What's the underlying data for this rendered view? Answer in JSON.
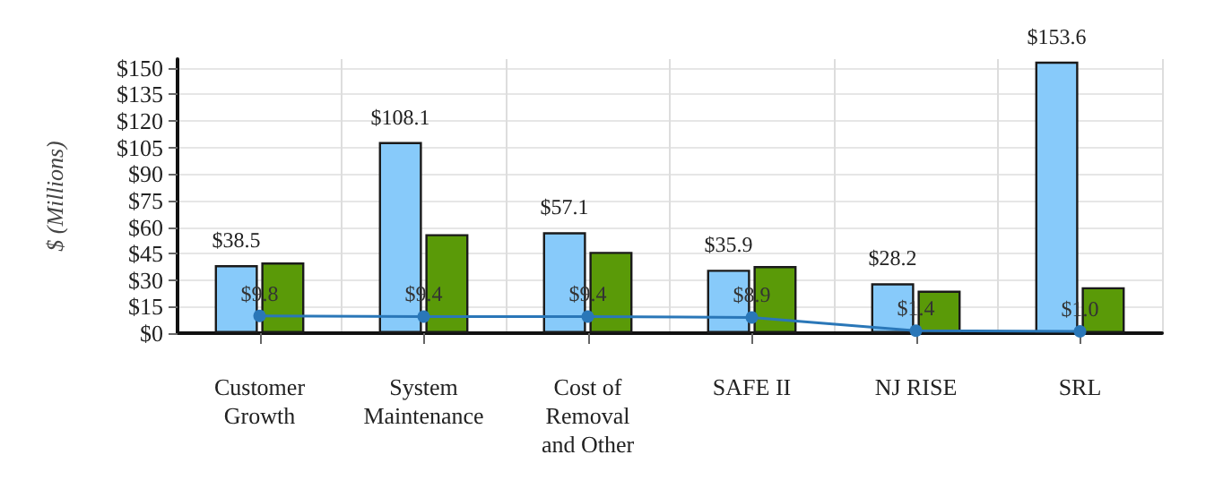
{
  "chart_data": {
    "type": "bar",
    "ylabel": "$ (Millions)",
    "categories": [
      "Customer\nGrowth",
      "System\nMaintenance",
      "Cost of\nRemoval\nand Other",
      "SAFE II",
      "NJ RISE",
      "SRL"
    ],
    "series": [
      {
        "color": "#87cafa",
        "values": [
          38.5,
          108.1,
          57.1,
          35.9,
          28.2,
          153.6
        ],
        "value_labels": [
          "$38.5",
          "$108.1",
          "$57.1",
          "$35.9",
          "$28.2",
          "$153.6"
        ]
      },
      {
        "color": "#5a9a08",
        "values": [
          40,
          56,
          46,
          38,
          24,
          26
        ]
      },
      {
        "type": "line",
        "color": "#2a77b8",
        "values": [
          9.8,
          9.4,
          9.4,
          8.9,
          1.4,
          1.0
        ],
        "value_labels": [
          "$9.8",
          "$9.4",
          "$9.4",
          "$8.9",
          "$1.4",
          "$1.0"
        ]
      }
    ],
    "ylim": [
      0,
      155
    ],
    "yticks": [
      {
        "value": 0,
        "label": "$0"
      },
      {
        "value": 15,
        "label": "$15"
      },
      {
        "value": 30,
        "label": "$30"
      },
      {
        "value": 45,
        "label": "$45"
      },
      {
        "value": 60,
        "label": "$60"
      },
      {
        "value": 75,
        "label": "$75"
      },
      {
        "value": 90,
        "label": "$90"
      },
      {
        "value": 105,
        "label": "$105"
      },
      {
        "value": 120,
        "label": "$120"
      },
      {
        "value": 135,
        "label": "$135"
      },
      {
        "value": 150,
        "label": "$150"
      }
    ],
    "grid": true,
    "marker": "circle",
    "line_style": "solid"
  }
}
